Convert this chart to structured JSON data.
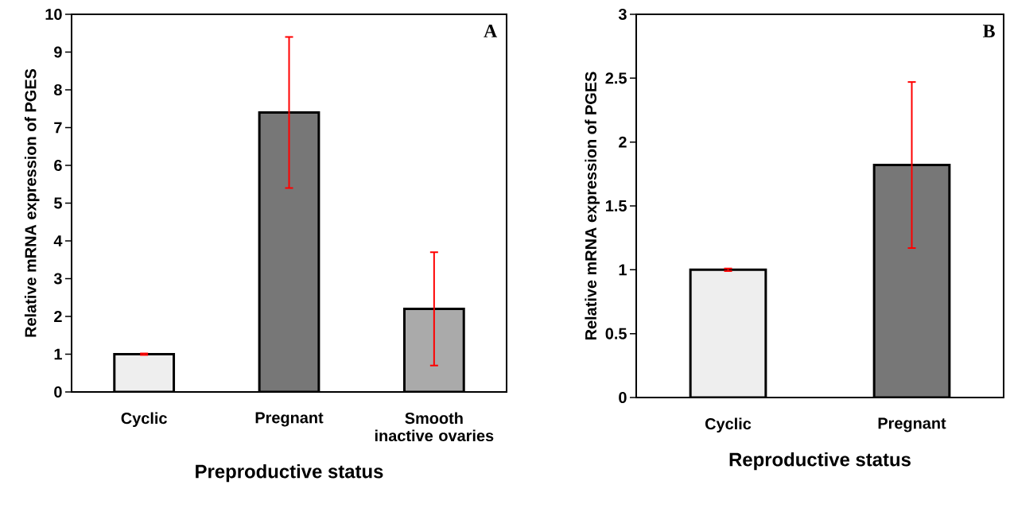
{
  "chart_data": [
    {
      "type": "bar",
      "categories": [
        "Cyclic",
        "Pregnant",
        "Smooth inactive ovaries"
      ],
      "values": [
        1.0,
        7.4,
        2.2
      ],
      "errors": [
        0.02,
        2.0,
        1.5
      ],
      "colors": [
        "#eeeeee",
        "#777777",
        "#aaaaaa"
      ],
      "xlabel": "Preproductive status",
      "ylabel": "Relative mRNA expression of PGES",
      "ylim": [
        0,
        10
      ],
      "yticks": [
        0,
        1,
        2,
        3,
        4,
        5,
        6,
        7,
        8,
        9,
        10
      ],
      "annotations": [
        "A"
      ]
    },
    {
      "type": "bar",
      "categories": [
        "Cyclic",
        "Pregnant"
      ],
      "values": [
        1.0,
        1.82
      ],
      "errors": [
        0.01,
        0.65
      ],
      "colors": [
        "#eeeeee",
        "#777777"
      ],
      "xlabel": "Reproductive status",
      "ylabel": "Relative mRNA expression of PGES",
      "ylim": [
        0,
        3
      ],
      "yticks": [
        0,
        0.5,
        1,
        1.5,
        2,
        2.5,
        3
      ],
      "annotations": [
        "B"
      ]
    }
  ]
}
